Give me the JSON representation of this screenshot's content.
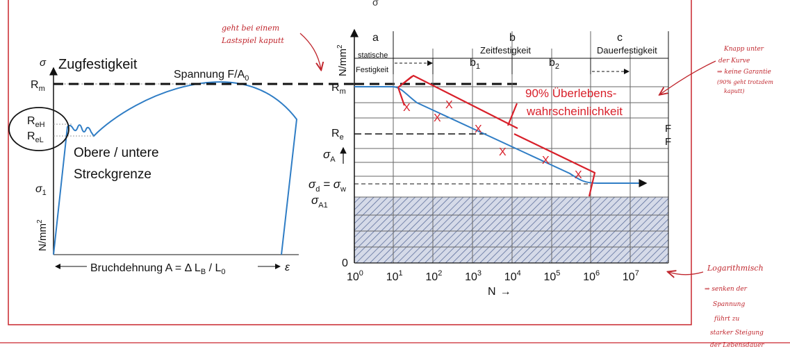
{
  "left_diagram": {
    "sigma_axis": "σ",
    "zugfestigkeit": "Zugfestigkeit",
    "rm": "R",
    "rm_sub": "m",
    "reh": "R",
    "reh_sub": "eH",
    "rel": "R",
    "rel_sub": "eL",
    "sigma1": "σ",
    "sigma1_sub": "1",
    "spannung": "Spannung F/A",
    "spannung_sub": "0",
    "obere_untere": "Obere / untere",
    "streckgrenze": "Streckgrenze",
    "unit": "N/mm",
    "unit_sup": "2",
    "bruchdehnung": "Bruchdehnung A = Δ L",
    "bruchdehnung_sub": "B",
    "bruchdehnung_mid": " / L",
    "bruchdehnung_sub2": "0",
    "epsilon": "ε"
  },
  "right_diagram": {
    "unit": "N/mm",
    "unit_sup": "2",
    "region_a": "a",
    "region_b": "b",
    "region_c": "c",
    "statische_1": "statische",
    "statische_2": "Festigkeit",
    "zeitfestigkeit": "Zeitfestigkeit",
    "dauerfestigkeit": "Dauerfestigkeit",
    "b1": "b",
    "b1_sub": "1",
    "b2": "b",
    "b2_sub": "2",
    "rm": "R",
    "rm_sub": "m",
    "re": "R",
    "re_sub": "e",
    "sigma_a": "σ",
    "sigma_a_sub": "A",
    "sigma_dw_1": "σ",
    "sigma_dw_sub1": "d",
    "sigma_dw_eq": " = σ",
    "sigma_dw_sub2": "w",
    "sigma_a1": "σ",
    "sigma_a1_sub": "A1",
    "zero": "0",
    "ticks": [
      "10",
      "10",
      "10",
      "10",
      "10",
      "10",
      "10",
      "10"
    ],
    "tick_exp": [
      "0",
      "1",
      "2",
      "3",
      "4",
      "5",
      "6",
      "7"
    ],
    "n_label": "N",
    "n_arrow": "→",
    "f1": "F",
    "f2": "F",
    "x_marks": [
      "X",
      "X",
      "X",
      "X",
      "X",
      "X",
      "X",
      "X"
    ]
  },
  "annotations": {
    "survival_1": "90% Überlebens-",
    "survival_2": "wahrscheinlichkeit",
    "hand_top_1": "geht bei einem",
    "hand_top_2": "Lastspiel kaputt",
    "hand_right": [
      "Knapp unter",
      "der Kurve",
      "⇒ keine Garantie",
      "(90% geht trotzdem",
      "kaputt)"
    ],
    "hand_bottom": [
      "Logarithmisch",
      "⇒ senken der",
      "Spannung",
      "führt zu",
      "starker Steigung",
      "der Lebensdauer"
    ],
    "top_cut": "σ"
  },
  "colors": {
    "frame": "#c9252c",
    "curve": "#2f7dc5",
    "annotation": "#c0262d",
    "hatch": "#5d6f9c",
    "ink": "#111111"
  }
}
